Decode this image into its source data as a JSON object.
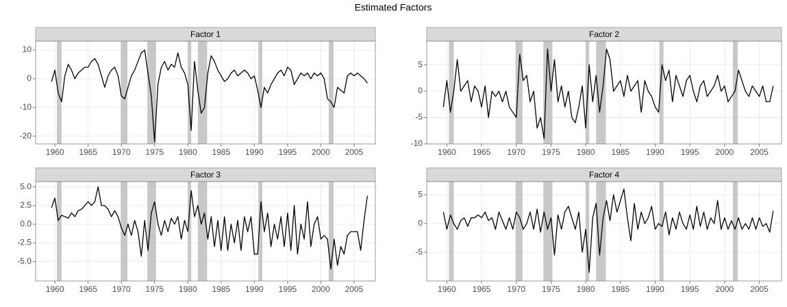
{
  "title": "Estimated Factors",
  "chart_data": [
    {
      "type": "line",
      "title": "Factor 1",
      "color": "#000000",
      "shade_color": "#bebebe",
      "grid": true,
      "xlim": [
        1957.1,
        2008.2
      ],
      "xticks": [
        1960,
        1965,
        1970,
        1975,
        1980,
        1985,
        1990,
        1995,
        2000,
        2005
      ],
      "ylim": [
        -22.7,
        13.1
      ],
      "yticks": [
        -20,
        -10,
        0,
        10
      ],
      "shaded_regions": [
        [
          1960.3,
          1961.0
        ],
        [
          1969.9,
          1970.9
        ],
        [
          1973.9,
          1975.2
        ],
        [
          1980.0,
          1980.5
        ],
        [
          1981.5,
          1982.9
        ],
        [
          1990.6,
          1991.2
        ],
        [
          2001.2,
          2001.9
        ]
      ],
      "x": [
        1959.5,
        1960,
        1960.5,
        1961,
        1961.5,
        1962,
        1962.5,
        1963,
        1963.5,
        1964,
        1964.5,
        1965,
        1965.5,
        1966,
        1966.5,
        1967,
        1967.5,
        1968,
        1968.5,
        1969,
        1969.5,
        1970,
        1970.5,
        1971,
        1971.5,
        1972,
        1972.5,
        1973,
        1973.5,
        1974,
        1974.5,
        1975,
        1975.5,
        1976,
        1976.5,
        1977,
        1977.5,
        1978,
        1978.5,
        1979,
        1979.5,
        1980,
        1980.5,
        1981,
        1981.5,
        1982,
        1982.5,
        1983,
        1983.5,
        1984,
        1984.5,
        1985,
        1985.5,
        1986,
        1986.5,
        1987,
        1987.5,
        1988,
        1988.5,
        1989,
        1989.5,
        1990,
        1990.5,
        1991,
        1991.5,
        1992,
        1992.5,
        1993,
        1993.5,
        1994,
        1994.5,
        1995,
        1995.5,
        1996,
        1996.5,
        1997,
        1997.5,
        1998,
        1998.5,
        1999,
        1999.5,
        2000,
        2000.5,
        2001,
        2001.5,
        2002,
        2002.5,
        2003,
        2003.5,
        2004,
        2004.5,
        2005,
        2005.5,
        2006,
        2006.5,
        2007
      ],
      "values": [
        -1,
        3,
        -5,
        -8,
        1,
        5,
        3,
        0,
        2,
        3,
        4,
        4,
        6,
        7,
        5,
        1,
        -3,
        1,
        3,
        4,
        1,
        -6,
        -7,
        -3,
        1,
        3,
        6,
        9,
        10,
        2,
        -6,
        -22,
        -2,
        4,
        6,
        3,
        5,
        4,
        9,
        4,
        2,
        -2,
        -18,
        6,
        -4,
        -12,
        -10,
        2,
        8,
        6,
        3,
        1,
        -1,
        0,
        2,
        3,
        1,
        2,
        3,
        2,
        0,
        1,
        -4,
        -10,
        -3,
        -5,
        -2,
        0,
        2,
        3,
        1,
        4,
        3,
        -2,
        0,
        2,
        1,
        2,
        0,
        2,
        1,
        2,
        0,
        -7,
        -8,
        -10,
        -3,
        -4,
        -5,
        1,
        2,
        1,
        2,
        1,
        0,
        -1.5
      ]
    },
    {
      "type": "line",
      "title": "Factor 2",
      "color": "#000000",
      "shade_color": "#bebebe",
      "grid": true,
      "xlim": [
        1957.1,
        2008.2
      ],
      "xticks": [
        1960,
        1965,
        1970,
        1975,
        1980,
        1985,
        1990,
        1995,
        2000,
        2005
      ],
      "ylim": [
        -10,
        9.5
      ],
      "yticks": [
        -10,
        -5,
        0,
        5
      ],
      "shaded_regions": [
        [
          1960.3,
          1961.0
        ],
        [
          1969.9,
          1970.9
        ],
        [
          1973.9,
          1975.2
        ],
        [
          1980.0,
          1980.5
        ],
        [
          1981.5,
          1982.9
        ],
        [
          1990.6,
          1991.2
        ],
        [
          2001.2,
          2001.9
        ]
      ],
      "x": [
        1959.5,
        1960,
        1960.5,
        1961,
        1961.5,
        1962,
        1962.5,
        1963,
        1963.5,
        1964,
        1964.5,
        1965,
        1965.5,
        1966,
        1966.5,
        1967,
        1967.5,
        1968,
        1968.5,
        1969,
        1969.5,
        1970,
        1970.5,
        1971,
        1971.5,
        1972,
        1972.5,
        1973,
        1973.5,
        1974,
        1974.5,
        1975,
        1975.5,
        1976,
        1976.5,
        1977,
        1977.5,
        1978,
        1978.5,
        1979,
        1979.5,
        1980,
        1980.5,
        1981,
        1981.5,
        1982,
        1982.5,
        1983,
        1983.5,
        1984,
        1984.5,
        1985,
        1985.5,
        1986,
        1986.5,
        1987,
        1987.5,
        1988,
        1988.5,
        1989,
        1989.5,
        1990,
        1990.5,
        1991,
        1991.5,
        1992,
        1992.5,
        1993,
        1993.5,
        1994,
        1994.5,
        1995,
        1995.5,
        1996,
        1996.5,
        1997,
        1997.5,
        1998,
        1998.5,
        1999,
        1999.5,
        2000,
        2000.5,
        2001,
        2001.5,
        2002,
        2002.5,
        2003,
        2003.5,
        2004,
        2004.5,
        2005,
        2005.5,
        2006,
        2006.5,
        2007
      ],
      "values": [
        -3,
        2,
        -4,
        0,
        6,
        0,
        1,
        2,
        -2,
        1,
        0,
        -3,
        1,
        -5,
        0,
        -1,
        0,
        -2,
        0,
        -3,
        -4,
        -5,
        7,
        2,
        3,
        -2,
        0,
        -7,
        -5,
        -9,
        8,
        0,
        6,
        -2,
        1,
        -3,
        0,
        -5,
        -6,
        -3,
        1,
        -7,
        5,
        -2,
        3,
        -4,
        1,
        8,
        6,
        0,
        1,
        2,
        -1,
        3,
        0,
        1,
        2,
        -4,
        2,
        0,
        -1,
        -3,
        -4,
        5,
        2,
        4,
        -2,
        3,
        1,
        -1,
        2,
        3,
        0,
        -2,
        1,
        2,
        -1,
        0,
        1,
        3,
        0,
        1,
        -2,
        -1,
        0,
        4,
        2,
        0,
        -1,
        1,
        0,
        -1,
        1,
        -2,
        -2,
        1
      ]
    },
    {
      "type": "line",
      "title": "Factor 3",
      "color": "#000000",
      "shade_color": "#bebebe",
      "grid": true,
      "xlim": [
        1957.1,
        2008.2
      ],
      "xticks": [
        1960,
        1965,
        1970,
        1975,
        1980,
        1985,
        1990,
        1995,
        2000,
        2005
      ],
      "ylim": [
        -7.6,
        5.7
      ],
      "yticks": [
        {
          "value": -5,
          "label": "-5.0"
        },
        -2.5,
        {
          "value": 0,
          "label": "0.0"
        },
        2.5,
        {
          "value": 5,
          "label": "5.0"
        }
      ],
      "shaded_regions": [
        [
          1960.3,
          1961.0
        ],
        [
          1969.9,
          1970.9
        ],
        [
          1973.9,
          1975.2
        ],
        [
          1980.0,
          1980.5
        ],
        [
          1981.5,
          1982.9
        ],
        [
          1990.6,
          1991.2
        ],
        [
          2001.2,
          2001.9
        ]
      ],
      "x": [
        1959.5,
        1960,
        1960.5,
        1961,
        1961.5,
        1962,
        1962.5,
        1963,
        1963.5,
        1964,
        1964.5,
        1965,
        1965.5,
        1966,
        1966.5,
        1967,
        1967.5,
        1968,
        1968.5,
        1969,
        1969.5,
        1970,
        1970.5,
        1971,
        1971.5,
        1972,
        1972.5,
        1973,
        1973.5,
        1974,
        1974.5,
        1975,
        1975.5,
        1976,
        1976.5,
        1977,
        1977.5,
        1978,
        1978.5,
        1979,
        1979.5,
        1980,
        1980.5,
        1981,
        1981.5,
        1982,
        1982.5,
        1983,
        1983.5,
        1984,
        1984.5,
        1985,
        1985.5,
        1986,
        1986.5,
        1987,
        1987.5,
        1988,
        1988.5,
        1989,
        1989.5,
        1990,
        1990.5,
        1991,
        1991.5,
        1992,
        1992.5,
        1993,
        1993.5,
        1994,
        1994.5,
        1995,
        1995.5,
        1996,
        1996.5,
        1997,
        1997.5,
        1998,
        1998.5,
        1999,
        1999.5,
        2000,
        2000.5,
        2001,
        2001.5,
        2002,
        2002.5,
        2003,
        2003.5,
        2004,
        2004.5,
        2005,
        2005.5,
        2006,
        2006.5,
        2007
      ],
      "values": [
        2.2,
        3.5,
        0.5,
        1.2,
        1,
        0.8,
        1.5,
        1,
        1.8,
        2,
        2.5,
        3,
        2.5,
        3,
        5,
        2.5,
        2.5,
        2,
        1,
        1.8,
        1,
        -0.5,
        -1.5,
        0,
        -1.5,
        0.5,
        -1,
        -4.3,
        0.5,
        -3.5,
        1.5,
        3,
        0,
        -1.5,
        0.5,
        -1,
        0.8,
        0,
        1,
        -2,
        0.5,
        -1,
        4.5,
        1,
        2.5,
        0,
        1.5,
        -2,
        1,
        -3,
        0.5,
        -3.5,
        1,
        -3.5,
        0,
        -2.5,
        0.5,
        -3.5,
        1,
        -1,
        1,
        -4,
        -4,
        3,
        -1,
        1.5,
        -3,
        0,
        -2,
        1,
        -3,
        1.5,
        -3.5,
        2.5,
        -4,
        0,
        -2,
        3,
        -3,
        0,
        1,
        -2,
        -1.5,
        -2,
        -6,
        -2,
        -5.5,
        -3,
        -4,
        -1.5,
        -1,
        -1,
        -1,
        -3.5,
        0.5,
        3.8
      ]
    },
    {
      "type": "line",
      "title": "Factor 4",
      "color": "#000000",
      "shade_color": "#bebebe",
      "grid": true,
      "xlim": [
        1957.1,
        2008.2
      ],
      "xticks": [
        1960,
        1965,
        1970,
        1975,
        1980,
        1985,
        1990,
        1995,
        2000,
        2005
      ],
      "ylim": [
        -10,
        7.3
      ],
      "yticks": [
        -5,
        0,
        5
      ],
      "shaded_regions": [
        [
          1960.3,
          1961.0
        ],
        [
          1969.9,
          1970.9
        ],
        [
          1973.9,
          1975.2
        ],
        [
          1980.0,
          1980.5
        ],
        [
          1981.5,
          1982.9
        ],
        [
          1990.6,
          1991.2
        ],
        [
          2001.2,
          2001.9
        ]
      ],
      "x": [
        1959.5,
        1960,
        1960.5,
        1961,
        1961.5,
        1962,
        1962.5,
        1963,
        1963.5,
        1964,
        1964.5,
        1965,
        1965.5,
        1966,
        1966.5,
        1967,
        1967.5,
        1968,
        1968.5,
        1969,
        1969.5,
        1970,
        1970.5,
        1971,
        1971.5,
        1972,
        1972.5,
        1973,
        1973.5,
        1974,
        1974.5,
        1975,
        1975.5,
        1976,
        1976.5,
        1977,
        1977.5,
        1978,
        1978.5,
        1979,
        1979.5,
        1980,
        1980.5,
        1981,
        1981.5,
        1982,
        1982.5,
        1983,
        1983.5,
        1984,
        1984.5,
        1985,
        1985.5,
        1986,
        1986.5,
        1987,
        1987.5,
        1988,
        1988.5,
        1989,
        1989.5,
        1990,
        1990.5,
        1991,
        1991.5,
        1992,
        1992.5,
        1993,
        1993.5,
        1994,
        1994.5,
        1995,
        1995.5,
        1996,
        1996.5,
        1997,
        1997.5,
        1998,
        1998.5,
        1999,
        1999.5,
        2000,
        2000.5,
        2001,
        2001.5,
        2002,
        2002.5,
        2003,
        2003.5,
        2004,
        2004.5,
        2005,
        2005.5,
        2006,
        2006.5,
        2007
      ],
      "values": [
        2,
        -1,
        1.5,
        0,
        -1,
        0.5,
        1,
        -0.5,
        1,
        1,
        1.5,
        1,
        2,
        0.5,
        1,
        -1,
        2,
        0.5,
        -1,
        1,
        -1,
        2,
        1,
        -1,
        0,
        2,
        -1,
        2.5,
        -1.5,
        2,
        -1,
        1,
        -5.5,
        1.5,
        -1,
        2,
        3,
        1,
        -1,
        2,
        -5,
        -1,
        -8.5,
        1,
        3.5,
        -5.5,
        1,
        4,
        0.5,
        5,
        2,
        4,
        6,
        1,
        -3,
        3.5,
        -1,
        2,
        0,
        1,
        3,
        -1,
        0,
        -0.5,
        2,
        -2,
        1,
        -1,
        2,
        0,
        -1,
        1.5,
        -1,
        3,
        -0.5,
        2,
        -1,
        1,
        0,
        4,
        -1,
        1,
        -1,
        0.5,
        -1,
        1,
        -1,
        0,
        -1,
        1,
        -1,
        1,
        -0.5,
        0,
        -1.5,
        2.2
      ]
    }
  ]
}
